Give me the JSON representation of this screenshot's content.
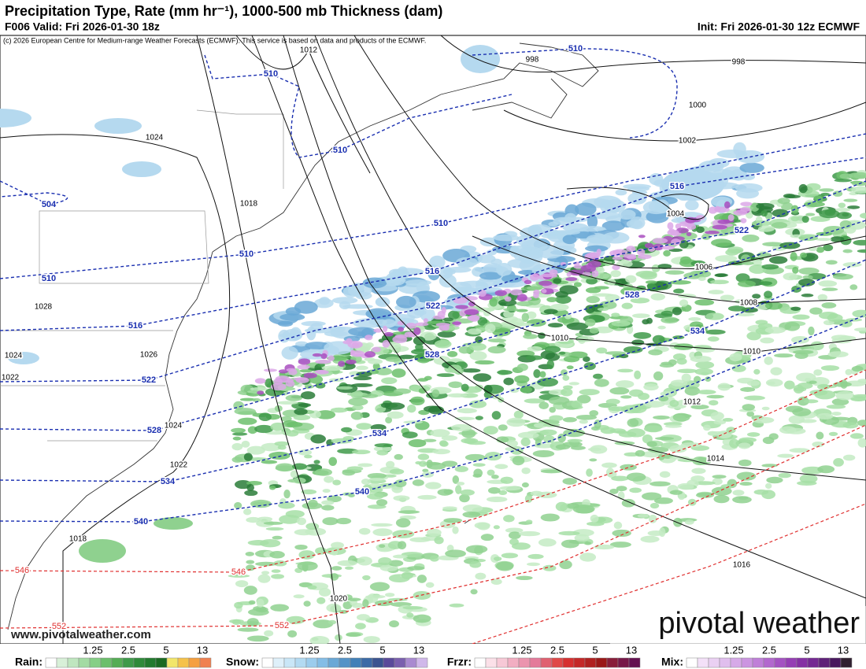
{
  "header": {
    "title": "Precipitation Type, Rate (mm hr⁻¹), 1000-500 mb Thickness (dam)",
    "valid": "F006 Valid: Fri 2026-01-30 18z",
    "init": "Init: Fri 2026-01-30 12z ECMWF",
    "credit": "(c) 2026 European Centre for Medium-range Weather Forecasts (ECMWF). This service is based on data and products of the ECMWF."
  },
  "isobar_labels": [
    "1012",
    "998",
    "998",
    "1000",
    "1002",
    "1024",
    "1018",
    "1004",
    "1006",
    "1008",
    "1028",
    "1010",
    "1010",
    "1024",
    "1026",
    "1022",
    "1012",
    "1024",
    "1022",
    "1014",
    "1018",
    "1016",
    "1020"
  ],
  "thickness_labels": [
    "510",
    "510",
    "510",
    "504",
    "510",
    "510",
    "510",
    "516",
    "522",
    "516",
    "522",
    "528",
    "516",
    "534",
    "528",
    "522",
    "528",
    "534",
    "534",
    "540",
    "540"
  ],
  "warm_thickness_labels": [
    "546",
    "546",
    "552",
    "552"
  ],
  "website": "www.pivotalweather.com",
  "logo": "pivotal weather",
  "legend": [
    {
      "label": "Rain:",
      "ticks": [
        1.25,
        2.5,
        5,
        13
      ]
    },
    {
      "label": "Snow:",
      "ticks": [
        1.25,
        2.5,
        5,
        13
      ]
    },
    {
      "label": "Frzr:",
      "ticks": [
        1.25,
        2.5,
        5,
        13
      ]
    },
    {
      "label": "Mix:",
      "ticks": [
        1.25,
        2.5,
        5,
        13
      ]
    }
  ]
}
